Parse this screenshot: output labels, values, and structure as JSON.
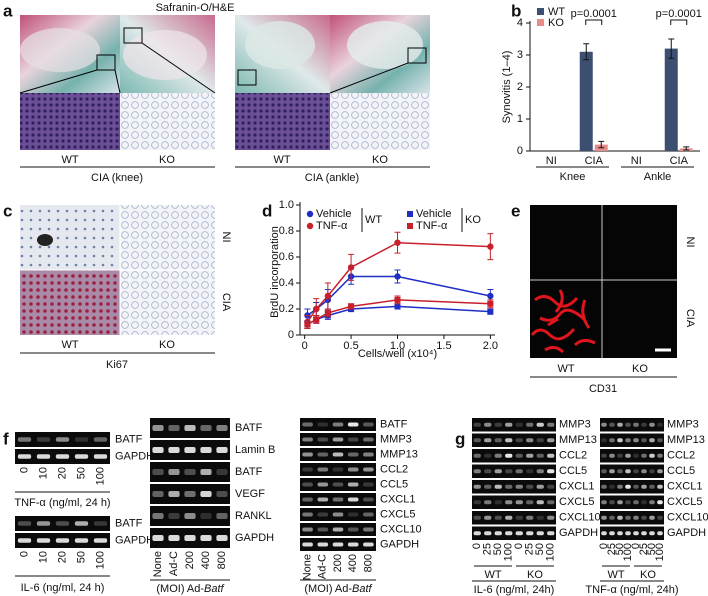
{
  "panel_a": {
    "label": "a",
    "title": "Safranin-O/H&E",
    "knee": {
      "columns": [
        "WT",
        "KO"
      ],
      "caption": "CIA (knee)"
    },
    "ankle": {
      "columns": [
        "WT",
        "KO"
      ],
      "caption": "CIA (ankle)"
    }
  },
  "panel_b": {
    "label": "b"
  },
  "panel_c": {
    "label": "c",
    "rows": [
      "NI",
      "CIA"
    ],
    "columns": [
      "WT",
      "KO"
    ],
    "caption": "Ki67"
  },
  "panel_d": {
    "label": "d"
  },
  "panel_e": {
    "label": "e",
    "rows": [
      "NI",
      "CIA"
    ],
    "columns": [
      "WT",
      "KO"
    ],
    "caption": "CD31"
  },
  "panel_f": {
    "label": "f",
    "gels": [
      {
        "bands": [
          "BATF",
          "GAPDH"
        ],
        "lanes": [
          0,
          10,
          20,
          50,
          100
        ],
        "caption": "TNF-α (ng/ml, 24 h)"
      },
      {
        "bands": [
          "BATF",
          "GAPDH"
        ],
        "lanes": [
          0,
          10,
          20,
          50,
          100
        ],
        "caption": "IL-6 (ng/ml, 24 h)"
      },
      {
        "bands": [
          "BATF",
          "Lamin B",
          "BATF",
          "VEGF",
          "RANKL",
          "GAPDH"
        ],
        "lanes": [
          "None",
          "Ad-C",
          200,
          400,
          800
        ],
        "caption": {
          "text": "(MOI) Ad-",
          "gene": "Batf"
        }
      },
      {
        "bands": [
          "BATF",
          "MMP3",
          "MMP13",
          "CCL2",
          "CCL5",
          "CXCL1",
          "CXCL5",
          "CXCL10",
          "GAPDH"
        ],
        "lanes": [
          "None",
          "Ad-C",
          200,
          400,
          800
        ],
        "caption": {
          "text": "(MOI) Ad-",
          "gene": "Batf"
        }
      }
    ]
  },
  "panel_g": {
    "label": "g",
    "gels": [
      {
        "bands": [
          "MMP3",
          "MMP13",
          "CCL2",
          "CCL5",
          "CXCL1",
          "CXCL5",
          "CXCL10",
          "GAPDH"
        ],
        "lanes": [
          0,
          25,
          50,
          100,
          0,
          25,
          50,
          100
        ],
        "groups": [
          "WT",
          "KO"
        ],
        "caption": "IL-6 (ng/ml, 24h)"
      },
      {
        "bands": [
          "MMP3",
          "MMP13",
          "CCL2",
          "CCL5",
          "CXCL1",
          "CXCL5",
          "CXCL10",
          "GAPDH"
        ],
        "lanes": [
          0,
          25,
          50,
          100,
          0,
          25,
          50,
          100
        ],
        "groups": [
          "WT",
          "KO"
        ],
        "caption": "TNF-α (ng/ml, 24h)"
      }
    ]
  },
  "chart_data": [
    {
      "type": "bar",
      "y_label": "Synovitis (1–4)",
      "categories": [
        "NI",
        "CIA",
        "NI",
        "CIA"
      ],
      "groups": [
        "Knee",
        "Ankle"
      ],
      "series": [
        {
          "name": "WT",
          "color": "#3d4f70",
          "values": [
            0,
            3.1,
            0,
            3.2
          ],
          "errors": [
            0,
            0.25,
            0,
            0.3
          ]
        },
        {
          "name": "KO",
          "color": "#e88b8b",
          "values": [
            0,
            0.2,
            0,
            0.08
          ],
          "errors": [
            0,
            0.1,
            0,
            0.05
          ]
        }
      ],
      "annotations": [
        "p=0.0001",
        "p=0.0001"
      ],
      "ylim": [
        0,
        4
      ],
      "yticks": [
        0,
        1,
        2,
        3,
        4
      ]
    },
    {
      "type": "line",
      "y_label": "BrdU incorporation",
      "x_label": "Cells/well (x10⁴)",
      "x": [
        0.03,
        0.125,
        0.25,
        0.5,
        1,
        2
      ],
      "series": [
        {
          "name": "Vehicle",
          "color": "#1f2fc4",
          "marker": "circle",
          "values": [
            0.15,
            0.2,
            0.27,
            0.45,
            0.45,
            0.3
          ],
          "errors": [
            0.05,
            0.05,
            0.08,
            0.06,
            0.05,
            0.05
          ]
        },
        {
          "name": "TNF-α",
          "color": "#c8202a",
          "marker": "circle",
          "values": [
            0.1,
            0.2,
            0.3,
            0.52,
            0.71,
            0.68
          ],
          "errors": [
            0.05,
            0.08,
            0.1,
            0.1,
            0.08,
            0.1
          ]
        },
        {
          "name": "Vehicle",
          "color": "#1f2fc4",
          "marker": "square",
          "values": [
            0.08,
            0.12,
            0.15,
            0.2,
            0.22,
            0.18
          ],
          "errors": [
            0.03,
            0.03,
            0.03,
            0.02,
            0.02,
            0.02
          ]
        },
        {
          "name": "TNF-α",
          "color": "#c8202a",
          "marker": "square",
          "values": [
            0.08,
            0.12,
            0.17,
            0.22,
            0.27,
            0.24
          ],
          "errors": [
            0.03,
            0.03,
            0.03,
            0.02,
            0.03,
            0.03
          ]
        }
      ],
      "legend_groups": [
        "WT",
        "KO"
      ],
      "xlim": [
        -0.05,
        2.05
      ],
      "xticks": [
        0,
        0.5,
        {
          "value": 1,
          "label": "1.0"
        },
        1.5,
        {
          "value": 2,
          "label": "2.0"
        }
      ],
      "ylim": [
        0,
        1
      ],
      "yticks": [
        0,
        0.2,
        0.4,
        0.6,
        0.8,
        {
          "value": 1,
          "label": "1.0"
        }
      ]
    }
  ]
}
